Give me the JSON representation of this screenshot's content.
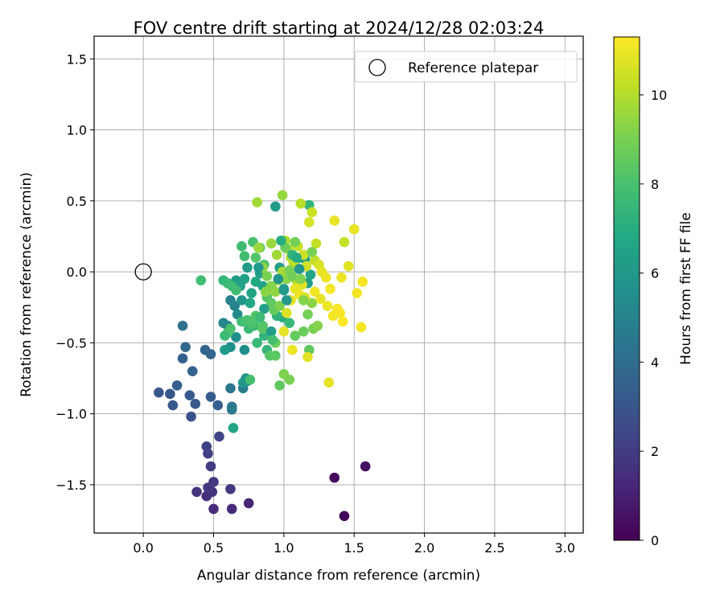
{
  "chart_data": {
    "type": "scatter",
    "title": "FOV centre drift starting at 2024/12/28 02:03:24",
    "xlabel": "Angular distance from reference (arcmin)",
    "ylabel": "Rotation from reference (arcmin)",
    "xlim": [
      -0.35,
      3.13
    ],
    "ylim": [
      -1.84,
      1.66
    ],
    "xticks": [
      0.0,
      0.5,
      1.0,
      1.5,
      2.0,
      2.5,
      3.0
    ],
    "xtick_labels": [
      "0.0",
      "0.5",
      "1.0",
      "1.5",
      "2.0",
      "2.5",
      "3.0"
    ],
    "yticks": [
      -1.5,
      -1.0,
      -0.5,
      0.0,
      0.5,
      1.0,
      1.5
    ],
    "ytick_labels": [
      "−1.5",
      "−1.0",
      "−0.5",
      "0.0",
      "0.5",
      "1.0",
      "1.5"
    ],
    "grid": true,
    "legend_position": "top-right",
    "legend": [
      {
        "label": "Reference platepar",
        "marker": "open-circle"
      }
    ],
    "reference_point": {
      "x": 0.0,
      "y": 0.0
    },
    "colorbar": {
      "label": "Hours from first FF file",
      "colormap": "viridis",
      "range": [
        0,
        11.3
      ],
      "ticks": [
        0,
        2,
        4,
        6,
        8,
        10
      ],
      "tick_labels": [
        "0",
        "2",
        "4",
        "6",
        "8",
        "10"
      ]
    },
    "series": [
      {
        "columns": [
          "x",
          "y",
          "hours"
        ],
        "points": [
          [
            1.43,
            -1.72,
            0.1
          ],
          [
            1.36,
            -1.45,
            0.3
          ],
          [
            1.58,
            -1.37,
            0.5
          ],
          [
            0.75,
            -1.63,
            1.2
          ],
          [
            0.63,
            -1.67,
            1.3
          ],
          [
            0.5,
            -1.67,
            1.4
          ],
          [
            0.45,
            -1.58,
            1.5
          ],
          [
            0.49,
            -1.55,
            1.6
          ],
          [
            0.38,
            -1.55,
            1.7
          ],
          [
            0.46,
            -1.52,
            1.8
          ],
          [
            0.5,
            -1.48,
            1.9
          ],
          [
            0.62,
            -1.53,
            1.8
          ],
          [
            0.48,
            -1.37,
            2.0
          ],
          [
            0.46,
            -1.28,
            2.1
          ],
          [
            0.45,
            -1.23,
            2.2
          ],
          [
            0.54,
            -1.16,
            2.3
          ],
          [
            0.34,
            -1.02,
            2.8
          ],
          [
            0.11,
            -0.85,
            3.0
          ],
          [
            0.19,
            -0.86,
            3.0
          ],
          [
            0.21,
            -0.94,
            3.1
          ],
          [
            0.33,
            -0.87,
            3.2
          ],
          [
            0.37,
            -0.93,
            3.2
          ],
          [
            0.24,
            -0.8,
            3.3
          ],
          [
            0.48,
            -0.88,
            3.3
          ],
          [
            0.53,
            -0.94,
            3.4
          ],
          [
            0.35,
            -0.7,
            3.5
          ],
          [
            0.28,
            -0.61,
            3.5
          ],
          [
            0.44,
            -0.55,
            3.6
          ],
          [
            0.48,
            -0.58,
            3.7
          ],
          [
            0.3,
            -0.53,
            3.8
          ],
          [
            0.28,
            -0.38,
            4.2
          ],
          [
            0.62,
            -0.82,
            4.4
          ],
          [
            0.63,
            -0.95,
            4.5
          ],
          [
            0.63,
            -0.97,
            4.6
          ],
          [
            0.71,
            -0.82,
            4.8
          ],
          [
            0.62,
            -0.2,
            4.9
          ],
          [
            0.65,
            -0.24,
            5.0
          ],
          [
            0.6,
            -0.38,
            5.1
          ],
          [
            0.57,
            -0.36,
            5.2
          ],
          [
            0.67,
            -0.3,
            5.4
          ],
          [
            0.72,
            -0.55,
            5.5
          ],
          [
            0.66,
            -0.46,
            5.6
          ],
          [
            0.62,
            -0.53,
            5.6
          ],
          [
            0.7,
            -0.2,
            5.8
          ],
          [
            0.73,
            -0.75,
            5.7
          ],
          [
            0.74,
            -0.77,
            5.9
          ],
          [
            0.71,
            -0.78,
            6.0
          ],
          [
            0.64,
            -1.1,
            6.6
          ],
          [
            0.58,
            -0.55,
            6.2
          ],
          [
            0.66,
            -0.06,
            6.3
          ],
          [
            0.69,
            -0.1,
            6.4
          ],
          [
            0.72,
            -0.05,
            6.5
          ],
          [
            0.77,
            -0.15,
            6.6
          ],
          [
            0.8,
            -0.07,
            6.8
          ],
          [
            0.83,
            -0.01,
            6.4
          ],
          [
            0.85,
            -0.1,
            6.6
          ],
          [
            0.94,
            0.46,
            6.1
          ],
          [
            0.97,
            0.03,
            6.3
          ],
          [
            1.0,
            -0.12,
            6.5
          ],
          [
            1.04,
            -0.2,
            6.8
          ],
          [
            1.08,
            0.08,
            6.8
          ],
          [
            1.12,
            0.1,
            6.6
          ],
          [
            1.15,
            0.09,
            6.5
          ],
          [
            1.17,
            -0.08,
            6.3
          ],
          [
            1.19,
            -0.02,
            6.7
          ],
          [
            1.18,
            0.47,
            7.3
          ],
          [
            0.99,
            -0.32,
            7.0
          ],
          [
            0.95,
            -0.31,
            7.2
          ],
          [
            0.86,
            -0.45,
            7.3
          ],
          [
            0.88,
            -0.55,
            7.4
          ],
          [
            0.81,
            -0.5,
            7.5
          ],
          [
            0.79,
            -0.38,
            7.6
          ],
          [
            0.75,
            -0.4,
            7.6
          ],
          [
            0.7,
            -0.35,
            7.8
          ],
          [
            0.74,
            -0.34,
            8.0
          ],
          [
            0.77,
            -0.36,
            8.1
          ],
          [
            0.8,
            -0.31,
            8.2
          ],
          [
            0.85,
            -0.38,
            8.2
          ],
          [
            0.85,
            -0.4,
            8.3
          ],
          [
            0.9,
            -0.59,
            8.3
          ],
          [
            0.94,
            -0.59,
            8.4
          ],
          [
            0.62,
            -0.4,
            8.0
          ],
          [
            0.6,
            -0.43,
            8.1
          ],
          [
            0.58,
            -0.45,
            7.7
          ],
          [
            0.57,
            -0.06,
            7.4
          ],
          [
            0.6,
            -0.08,
            7.6
          ],
          [
            0.63,
            -0.1,
            7.7
          ],
          [
            0.66,
            -0.13,
            7.8
          ],
          [
            0.41,
            -0.06,
            7.8
          ],
          [
            0.76,
            -0.76,
            7.9
          ],
          [
            0.7,
            0.18,
            7.7
          ],
          [
            0.72,
            0.11,
            7.8
          ],
          [
            0.78,
            0.21,
            8.0
          ],
          [
            0.8,
            0.1,
            8.2
          ],
          [
            0.83,
            0.17,
            8.3
          ],
          [
            0.86,
            0.05,
            8.1
          ],
          [
            0.88,
            -0.18,
            8.2
          ],
          [
            0.91,
            -0.22,
            8.5
          ],
          [
            0.93,
            -0.27,
            8.6
          ],
          [
            0.97,
            -0.8,
            8.5
          ],
          [
            1.0,
            -0.72,
            9.1
          ],
          [
            1.04,
            -0.76,
            9.0
          ],
          [
            1.08,
            -0.45,
            8.6
          ],
          [
            1.14,
            -0.42,
            8.7
          ],
          [
            1.18,
            -0.55,
            8.5
          ],
          [
            1.21,
            -0.4,
            9.0
          ],
          [
            1.24,
            -0.38,
            9.2
          ],
          [
            1.17,
            -0.3,
            8.9
          ],
          [
            1.2,
            -0.22,
            9.3
          ],
          [
            0.94,
            -0.5,
            8.7
          ],
          [
            0.99,
            0.54,
            9.5
          ],
          [
            0.81,
            0.49,
            9.7
          ],
          [
            0.82,
            0.17,
            9.6
          ],
          [
            0.85,
            0.03,
            9.4
          ],
          [
            0.87,
            -0.14,
            9.3
          ],
          [
            0.91,
            0.2,
            9.6
          ],
          [
            0.95,
            0.12,
            9.7
          ],
          [
            0.96,
            -0.06,
            9.5
          ],
          [
            0.99,
            0.0,
            9.8
          ],
          [
            1.01,
            0.22,
            9.9
          ],
          [
            1.03,
            0.16,
            10.0
          ],
          [
            1.05,
            0.1,
            10.1
          ],
          [
            1.07,
            0.06,
            10.2
          ],
          [
            1.09,
            -0.06,
            10.0
          ],
          [
            1.1,
            0.18,
            10.3
          ],
          [
            1.12,
            0.48,
            10.1
          ],
          [
            1.14,
            0.12,
            10.4
          ],
          [
            1.16,
            0.04,
            10.5
          ],
          [
            1.18,
            0.35,
            10.6
          ],
          [
            1.2,
            0.42,
            10.4
          ],
          [
            1.22,
            0.08,
            10.2
          ],
          [
            1.23,
            0.2,
            10.3
          ],
          [
            1.25,
            0.05,
            10.6
          ],
          [
            1.27,
            0.0,
            10.9
          ],
          [
            1.3,
            -0.04,
            11.0
          ],
          [
            1.33,
            -0.12,
            11.1
          ],
          [
            1.31,
            -0.24,
            11.0
          ],
          [
            1.35,
            -0.31,
            11.1
          ],
          [
            1.38,
            -0.26,
            11.2
          ],
          [
            1.4,
            -0.29,
            11.2
          ],
          [
            1.42,
            -0.35,
            11.3
          ],
          [
            1.36,
            0.36,
            10.9
          ],
          [
            1.41,
            -0.04,
            11.0
          ],
          [
            1.43,
            0.21,
            10.3
          ],
          [
            1.46,
            0.04,
            10.8
          ],
          [
            1.5,
            0.3,
            10.9
          ],
          [
            1.52,
            -0.15,
            11.1
          ],
          [
            1.56,
            -0.07,
            11.2
          ],
          [
            1.55,
            -0.39,
            11.1
          ],
          [
            1.32,
            -0.78,
            10.9
          ],
          [
            1.17,
            -0.6,
            10.8
          ],
          [
            1.06,
            -0.55,
            11.0
          ],
          [
            1.0,
            -0.42,
            10.9
          ],
          [
            1.02,
            -0.29,
            10.7
          ],
          [
            1.05,
            -0.2,
            10.8
          ],
          [
            1.08,
            -0.12,
            10.9
          ],
          [
            1.11,
            -0.16,
            11.0
          ],
          [
            1.13,
            -0.09,
            10.8
          ],
          [
            1.15,
            -0.18,
            10.7
          ],
          [
            1.22,
            -0.14,
            11.1
          ],
          [
            1.26,
            -0.19,
            10.9
          ],
          [
            0.88,
            -0.03,
            9.0
          ],
          [
            0.91,
            -0.1,
            9.2
          ],
          [
            0.94,
            -0.14,
            9.4
          ],
          [
            0.97,
            -0.24,
            9.1
          ],
          [
            1.02,
            -0.05,
            9.3
          ],
          [
            1.04,
            0.01,
            9.0
          ],
          [
            1.06,
            -0.03,
            8.8
          ],
          [
            1.12,
            -0.05,
            9.1
          ],
          [
            1.14,
            -0.2,
            9.2
          ],
          [
            1.2,
            0.14,
            9.0
          ],
          [
            1.08,
            0.21,
            8.9
          ],
          [
            1.01,
            0.17,
            8.7
          ],
          [
            0.98,
            0.22,
            7.0
          ],
          [
            1.06,
            0.12,
            7.3
          ],
          [
            1.09,
            0.1,
            6.9
          ],
          [
            1.02,
            -0.2,
            6.0
          ],
          [
            0.91,
            -0.42,
            6.2
          ],
          [
            0.96,
            -0.05,
            5.8
          ],
          [
            1.0,
            -0.13,
            6.1
          ],
          [
            0.82,
            0.03,
            6.0
          ],
          [
            0.86,
            -0.26,
            6.4
          ],
          [
            0.76,
            -0.22,
            6.7
          ],
          [
            0.74,
            0.03,
            6.1
          ],
          [
            1.11,
            0.02,
            5.9
          ],
          [
            1.04,
            -0.36,
            7.5
          ],
          [
            0.92,
            -0.48,
            7.9
          ],
          [
            0.83,
            -0.32,
            7.6
          ]
        ]
      }
    ]
  }
}
